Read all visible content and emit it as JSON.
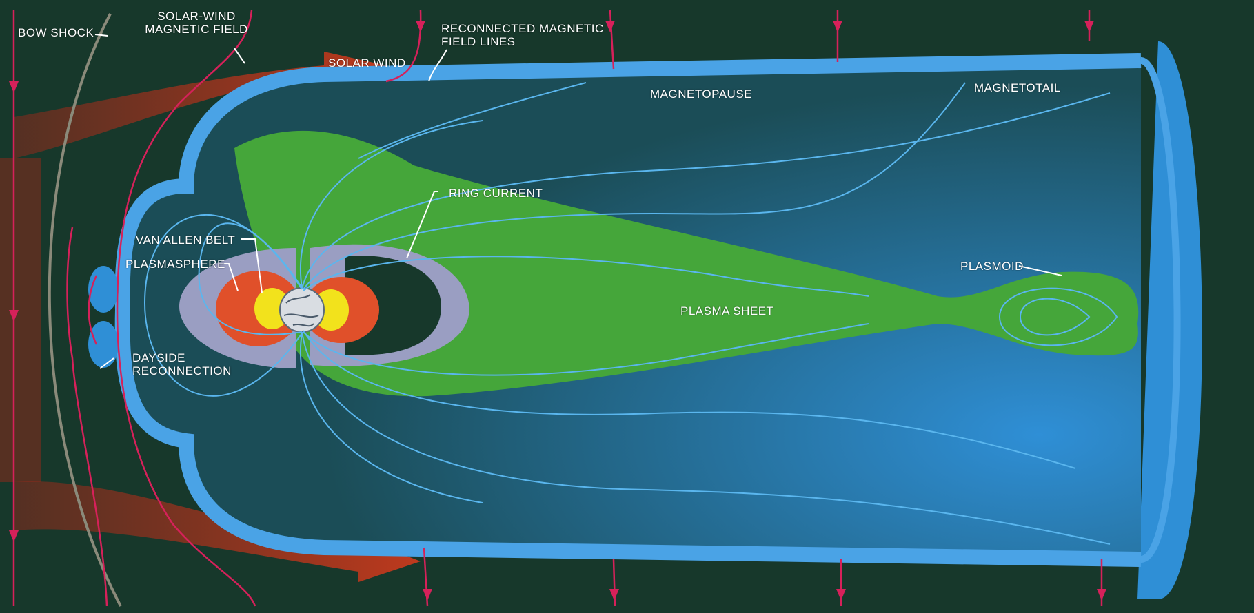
{
  "labels": {
    "bow_shock": "BOW SHOCK",
    "solar_wind_field_1": "SOLAR-WIND",
    "solar_wind_field_2": "MAGNETIC FIELD",
    "solar_wind": "SOLAR WIND",
    "reconnected_1": "RECONNECTED MAGNETIC",
    "reconnected_2": "FIELD LINES",
    "magnetopause": "MAGNETOPAUSE",
    "magnetotail": "MAGNETOTAIL",
    "ring_current": "RING CURRENT",
    "van_allen_belt": "VAN ALLEN BELT",
    "plasmasphere": "PLASMASPHERE",
    "plasmoid": "PLASMOID",
    "plasma_sheet": "PLASMA SHEET",
    "dayside_reconnection_1": "DAYSIDE",
    "dayside_reconnection_2": "RECONNECTION"
  },
  "colors": {
    "background": "#17382b",
    "magnetosphere_blue": "#2f8fd6",
    "magnetopause_band": "#4aa3e6",
    "field_line_blue": "#5ab6ee",
    "plasma_sheet_green": "#45a63a",
    "solar_wind_red": "#c8351e",
    "imf_line_magenta": "#d6215a",
    "plasmasphere_lavender": "#9a9ec2",
    "van_allen_outer": "#e0502a",
    "van_allen_inner": "#f2e21c"
  }
}
